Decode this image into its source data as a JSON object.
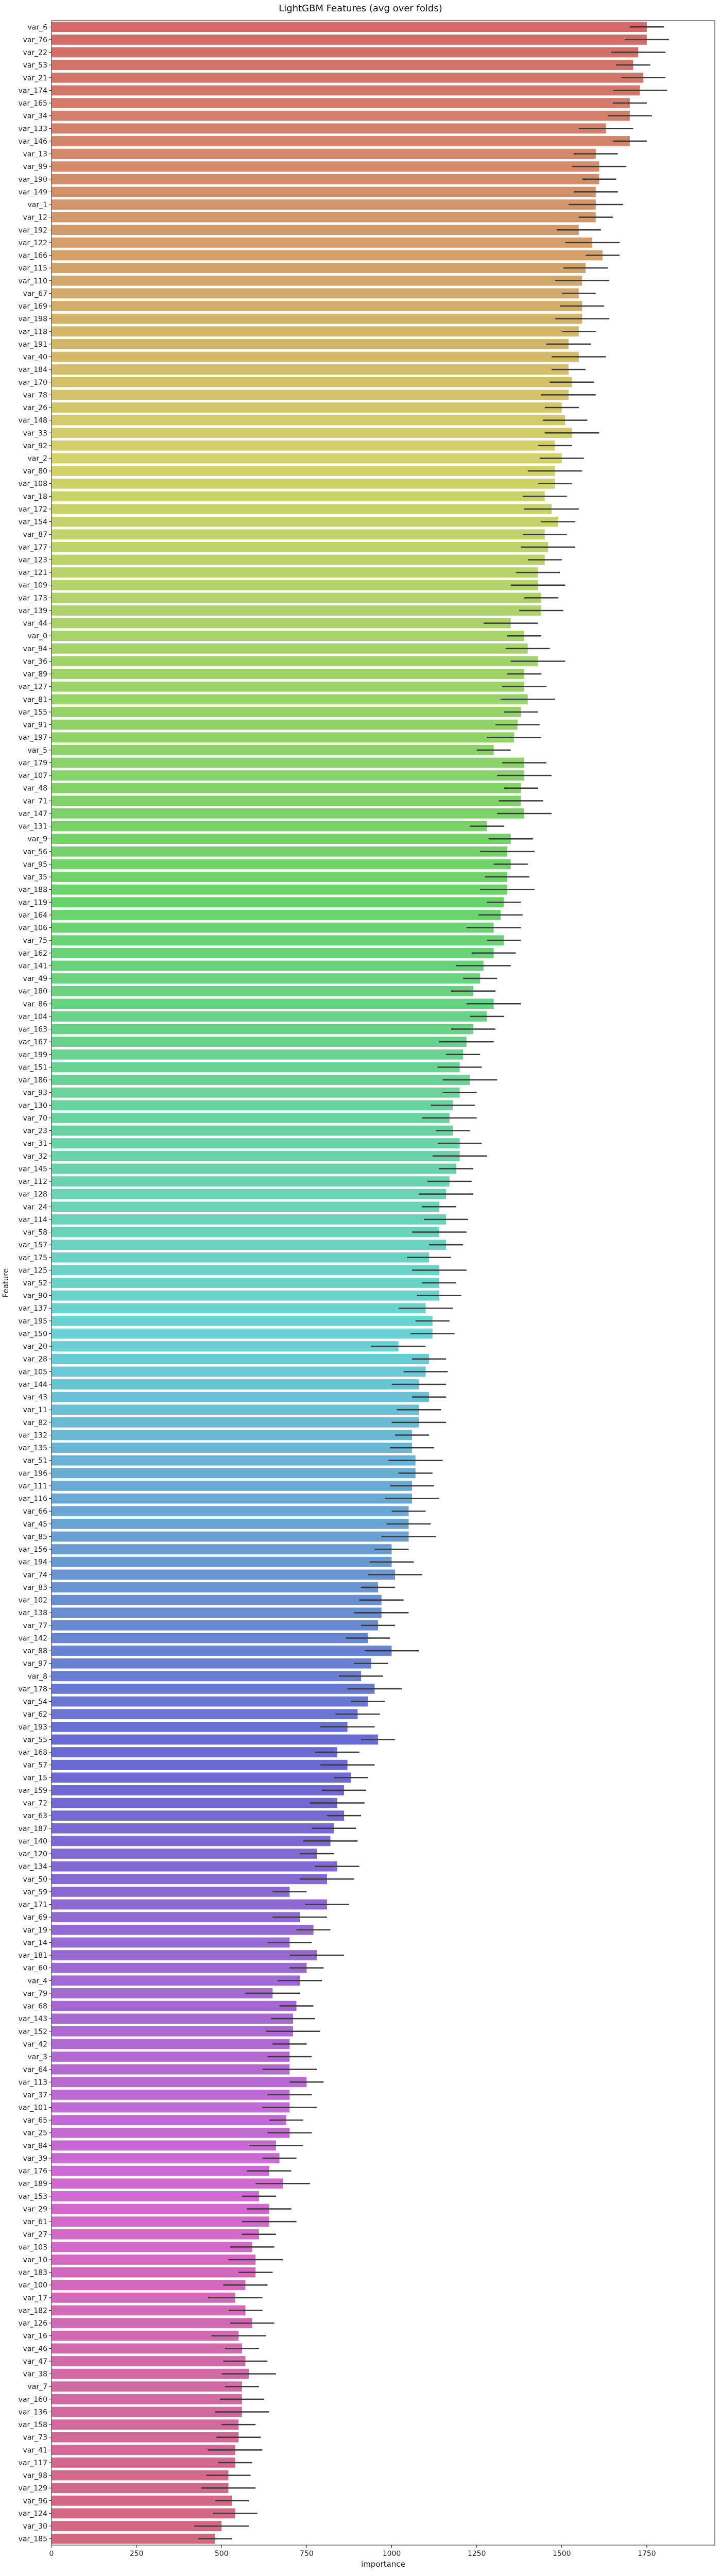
{
  "chart_data": {
    "type": "bar",
    "orientation": "horizontal",
    "title": "LightGBM Features (avg over folds)",
    "xlabel": "importance",
    "ylabel": "Feature",
    "xlim": [
      0,
      1950
    ],
    "xticks": [
      0,
      250,
      500,
      750,
      1000,
      1250,
      1500,
      1750
    ],
    "grid": false,
    "legend": "none",
    "error_bars": true,
    "palette": "husl gradient (red → orange → olive → green → teal → blue → purple → pink)",
    "categories": [
      "var_6",
      "var_76",
      "var_22",
      "var_53",
      "var_21",
      "var_174",
      "var_165",
      "var_34",
      "var_133",
      "var_146",
      "var_13",
      "var_99",
      "var_190",
      "var_149",
      "var_1",
      "var_12",
      "var_192",
      "var_122",
      "var_166",
      "var_115",
      "var_110",
      "var_67",
      "var_169",
      "var_198",
      "var_118",
      "var_191",
      "var_40",
      "var_184",
      "var_170",
      "var_78",
      "var_26",
      "var_148",
      "var_33",
      "var_92",
      "var_2",
      "var_80",
      "var_108",
      "var_18",
      "var_172",
      "var_154",
      "var_87",
      "var_177",
      "var_123",
      "var_121",
      "var_109",
      "var_173",
      "var_139",
      "var_44",
      "var_0",
      "var_94",
      "var_36",
      "var_89",
      "var_127",
      "var_81",
      "var_155",
      "var_91",
      "var_197",
      "var_5",
      "var_179",
      "var_107",
      "var_48",
      "var_71",
      "var_147",
      "var_131",
      "var_9",
      "var_56",
      "var_95",
      "var_35",
      "var_188",
      "var_119",
      "var_164",
      "var_106",
      "var_75",
      "var_162",
      "var_141",
      "var_49",
      "var_180",
      "var_86",
      "var_104",
      "var_163",
      "var_167",
      "var_199",
      "var_151",
      "var_186",
      "var_93",
      "var_130",
      "var_70",
      "var_23",
      "var_31",
      "var_32",
      "var_145",
      "var_112",
      "var_128",
      "var_24",
      "var_114",
      "var_58",
      "var_157",
      "var_175",
      "var_125",
      "var_52",
      "var_90",
      "var_137",
      "var_195",
      "var_150",
      "var_20",
      "var_28",
      "var_105",
      "var_144",
      "var_43",
      "var_11",
      "var_82",
      "var_132",
      "var_135",
      "var_51",
      "var_196",
      "var_111",
      "var_116",
      "var_66",
      "var_45",
      "var_85",
      "var_156",
      "var_194",
      "var_74",
      "var_83",
      "var_102",
      "var_138",
      "var_77",
      "var_142",
      "var_88",
      "var_97",
      "var_8",
      "var_178",
      "var_54",
      "var_62",
      "var_193",
      "var_55",
      "var_168",
      "var_57",
      "var_15",
      "var_159",
      "var_72",
      "var_63",
      "var_187",
      "var_140",
      "var_120",
      "var_134",
      "var_50",
      "var_59",
      "var_171",
      "var_69",
      "var_19",
      "var_14",
      "var_181",
      "var_60",
      "var_4",
      "var_79",
      "var_68",
      "var_143",
      "var_152",
      "var_42",
      "var_3",
      "var_64",
      "var_113",
      "var_37",
      "var_101",
      "var_65",
      "var_25",
      "var_84",
      "var_39",
      "var_176",
      "var_189",
      "var_153",
      "var_29",
      "var_61",
      "var_27",
      "var_103",
      "var_10",
      "var_183",
      "var_100",
      "var_17",
      "var_182",
      "var_126",
      "var_16",
      "var_46",
      "var_47",
      "var_38",
      "var_7",
      "var_160",
      "var_136",
      "var_158",
      "var_73",
      "var_41",
      "var_117",
      "var_98",
      "var_129",
      "var_96",
      "var_124",
      "var_30",
      "var_185"
    ],
    "values": [
      1750,
      1750,
      1725,
      1710,
      1740,
      1730,
      1700,
      1700,
      1630,
      1700,
      1600,
      1610,
      1610,
      1600,
      1600,
      1600,
      1550,
      1590,
      1620,
      1570,
      1560,
      1550,
      1560,
      1560,
      1550,
      1520,
      1550,
      1520,
      1530,
      1520,
      1500,
      1510,
      1530,
      1480,
      1500,
      1480,
      1480,
      1450,
      1470,
      1490,
      1450,
      1460,
      1450,
      1430,
      1430,
      1440,
      1440,
      1350,
      1390,
      1400,
      1430,
      1390,
      1390,
      1400,
      1380,
      1370,
      1360,
      1300,
      1390,
      1390,
      1380,
      1380,
      1390,
      1280,
      1350,
      1340,
      1350,
      1340,
      1340,
      1330,
      1320,
      1300,
      1330,
      1300,
      1270,
      1260,
      1240,
      1300,
      1280,
      1240,
      1220,
      1210,
      1200,
      1230,
      1200,
      1180,
      1170,
      1180,
      1200,
      1200,
      1190,
      1170,
      1160,
      1140,
      1160,
      1140,
      1160,
      1110,
      1140,
      1140,
      1140,
      1100,
      1120,
      1120,
      1020,
      1110,
      1100,
      1080,
      1110,
      1080,
      1080,
      1060,
      1060,
      1070,
      1070,
      1060,
      1060,
      1050,
      1050,
      1050,
      1000,
      1000,
      1010,
      960,
      970,
      970,
      960,
      930,
      1000,
      940,
      910,
      950,
      930,
      900,
      870,
      960,
      840,
      870,
      880,
      860,
      840,
      860,
      830,
      820,
      780,
      840,
      810,
      700,
      810,
      730,
      770,
      700,
      780,
      750,
      730,
      650,
      720,
      710,
      710,
      700,
      700,
      700,
      750,
      700,
      700,
      690,
      700,
      660,
      670,
      640,
      680,
      610,
      640,
      640,
      610,
      590,
      600,
      600,
      570,
      540,
      570,
      590,
      550,
      560,
      570,
      580,
      560,
      560,
      560,
      550,
      550,
      540,
      540,
      520,
      520,
      530,
      540,
      500,
      480
    ]
  }
}
